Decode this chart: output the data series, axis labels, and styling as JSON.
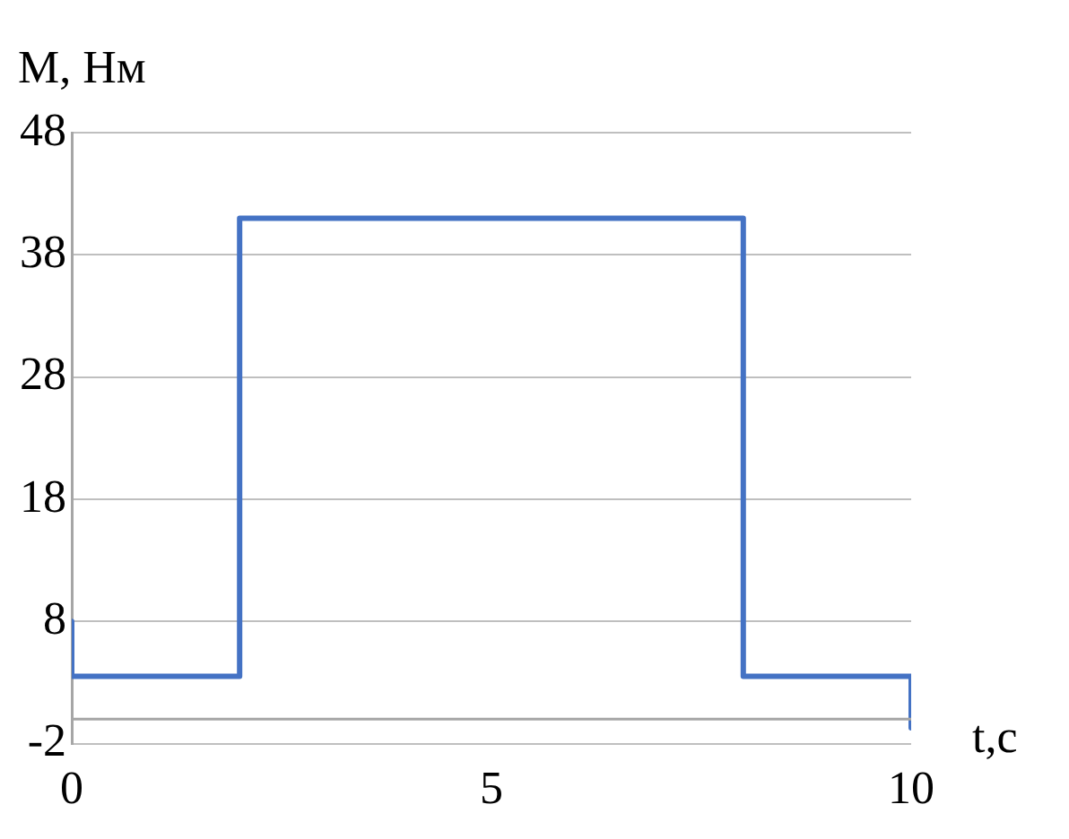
{
  "chart_data": {
    "type": "line",
    "xlabel": "t,c",
    "ylabel": "M, Нм",
    "x": [
      0,
      0,
      2,
      2,
      8,
      8,
      10,
      10
    ],
    "series": [
      {
        "color": "#4472c4",
        "values": [
          8,
          3.5,
          3.5,
          41,
          41,
          3.5,
          3.5,
          -0.7
        ]
      }
    ],
    "xlim": [
      0,
      10
    ],
    "xticks": [
      0,
      5,
      10
    ],
    "ylim": [
      -2,
      48
    ],
    "yticks": [
      -2,
      8,
      18,
      28,
      38,
      48
    ],
    "grid": "y",
    "legend": false,
    "marker": "none",
    "line_style": "solid",
    "ref_lines": [
      {
        "axis": "y",
        "value": 0,
        "color": "#a6a6a6"
      }
    ]
  }
}
